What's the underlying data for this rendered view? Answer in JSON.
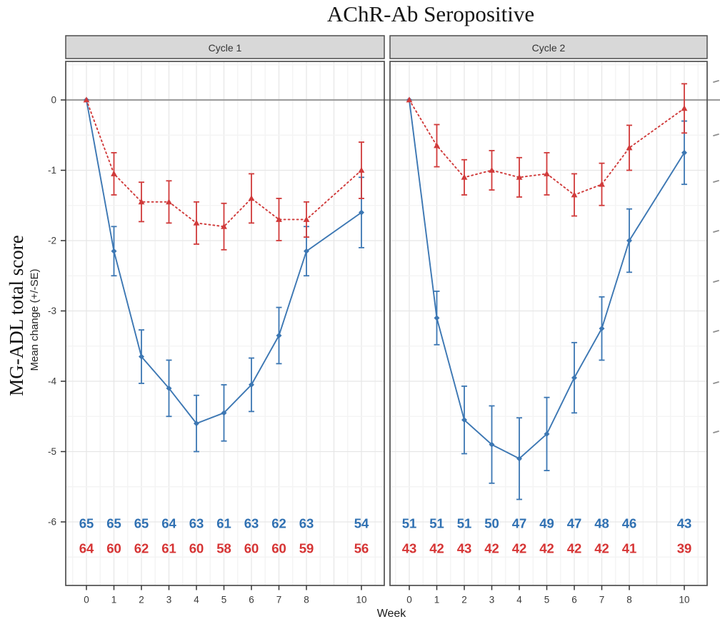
{
  "title": "AChR-Ab Seropositive",
  "axes": {
    "y_primary_label": "MG-ADL total score",
    "y_secondary_label": "Mean change (+/-SE)",
    "x_label": "Week",
    "y_ticks": [
      0,
      -1,
      -2,
      -3,
      -4,
      -5,
      -6
    ],
    "x_ticks": [
      0,
      1,
      2,
      3,
      4,
      5,
      6,
      7,
      8,
      10
    ]
  },
  "colors": {
    "blue_series": "#3c77b3",
    "red_series": "#d03a3a",
    "counts_blue": "#2f70b2",
    "counts_red": "#d63434",
    "strip_bg": "#d8d8d8",
    "strip_text": "#333333",
    "panel_border": "#4f4f4f",
    "grid_major": "#e6e6e6",
    "grid_minor": "#f3f3f3",
    "zero_line": "#9e9e9e",
    "tick_text": "#3a3a3a",
    "tick_mark": "#333333",
    "edge_artifact": "#8f8f8f"
  },
  "chart_data": {
    "type": "line",
    "title": "AChR-Ab Seropositive",
    "xlabel": "Week",
    "ylabel": "MG-ADL total score, Mean change (+/-SE)",
    "x": [
      0,
      1,
      2,
      3,
      4,
      5,
      6,
      7,
      8,
      10
    ],
    "ylim": [
      -6.9,
      0.55
    ],
    "grid": true,
    "legend": "none",
    "panels": [
      {
        "name": "Cycle 1",
        "series": [
          {
            "name": "blue-solid-diamond",
            "line": "solid",
            "marker": "diamond",
            "mean": [
              0,
              -2.15,
              -3.65,
              -4.1,
              -4.6,
              -4.45,
              -4.05,
              -3.35,
              -2.15,
              -1.6
            ],
            "se": [
              0,
              0.35,
              0.38,
              0.4,
              0.4,
              0.4,
              0.38,
              0.4,
              0.35,
              0.5
            ],
            "n": [
              65,
              65,
              65,
              64,
              63,
              61,
              63,
              62,
              63,
              54
            ]
          },
          {
            "name": "red-dotted-triangle",
            "line": "dotted",
            "marker": "triangle",
            "mean": [
              0,
              -1.05,
              -1.45,
              -1.45,
              -1.75,
              -1.8,
              -1.4,
              -1.7,
              -1.7,
              -1.0
            ],
            "se": [
              0,
              0.3,
              0.28,
              0.3,
              0.3,
              0.33,
              0.35,
              0.3,
              0.25,
              0.4
            ],
            "n": [
              64,
              60,
              62,
              61,
              60,
              58,
              60,
              60,
              59,
              56
            ]
          }
        ]
      },
      {
        "name": "Cycle 2",
        "series": [
          {
            "name": "blue-solid-diamond",
            "line": "solid",
            "marker": "diamond",
            "mean": [
              0,
              -3.1,
              -4.55,
              -4.9,
              -5.1,
              -4.75,
              -3.95,
              -3.25,
              -2.0,
              -0.75
            ],
            "se": [
              0,
              0.38,
              0.48,
              0.55,
              0.58,
              0.52,
              0.5,
              0.45,
              0.45,
              0.45
            ],
            "n": [
              51,
              51,
              51,
              50,
              47,
              49,
              47,
              48,
              46,
              43
            ]
          },
          {
            "name": "red-dotted-triangle",
            "line": "dotted",
            "marker": "triangle",
            "mean": [
              0,
              -0.65,
              -1.1,
              -1.0,
              -1.1,
              -1.05,
              -1.35,
              -1.2,
              -0.68,
              -0.12
            ],
            "se": [
              0,
              0.3,
              0.25,
              0.28,
              0.28,
              0.3,
              0.3,
              0.3,
              0.32,
              0.35
            ],
            "n": [
              43,
              42,
              43,
              42,
              42,
              42,
              42,
              42,
              41,
              39
            ]
          }
        ]
      }
    ]
  },
  "right_edge_marks": [
    113,
    188,
    253,
    323,
    393,
    463,
    535,
    604
  ]
}
